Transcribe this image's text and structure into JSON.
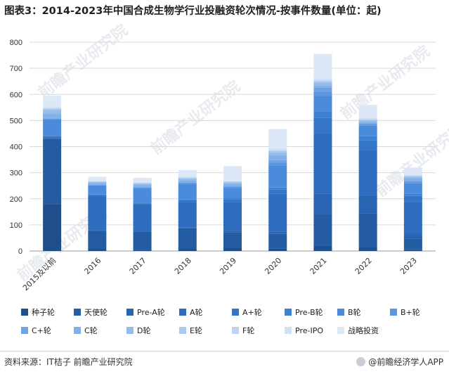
{
  "title": "图表3：2014-2023年中国合成生物学行业投融资轮次情况-按事件数量(单位：起)",
  "source": "资料来源：IT桔子 前瞻产业研究院",
  "brand": "@前瞻经济学人APP",
  "watermark": "前瞻产业研究院",
  "chart_data": {
    "type": "bar",
    "stacked": true,
    "title": "图表3：2014-2023年中国合成生物学行业投融资轮次情况-按事件数量(单位：起)",
    "xlabel": "",
    "ylabel": "",
    "ylim": [
      0,
      800
    ],
    "yticks": [
      0,
      100,
      200,
      300,
      400,
      500,
      600,
      700,
      800
    ],
    "grid": true,
    "legend_position": "bottom",
    "categories": [
      "2015及以前",
      "2016",
      "2017",
      "2018",
      "2019",
      "2020",
      "2021",
      "2022",
      "2023"
    ],
    "series": [
      {
        "name": "种子轮",
        "color": "#1f4e8c",
        "values": [
          180,
          8,
          5,
          8,
          12,
          10,
          20,
          15,
          6
        ]
      },
      {
        "name": "天使轮",
        "color": "#245ca3",
        "values": [
          250,
          70,
          70,
          80,
          60,
          55,
          120,
          130,
          40
        ]
      },
      {
        "name": "Pre-A轮",
        "color": "#2964b3",
        "values": [
          3,
          2,
          3,
          3,
          5,
          10,
          80,
          70,
          20
        ]
      },
      {
        "name": "A轮",
        "color": "#2d6cbf",
        "values": [
          4,
          130,
          100,
          95,
          110,
          145,
          230,
          170,
          120
        ]
      },
      {
        "name": "A+轮",
        "color": "#3474c9",
        "values": [
          4,
          4,
          5,
          8,
          10,
          15,
          60,
          40,
          25
        ]
      },
      {
        "name": "Pre-B轮",
        "color": "#3c7fd3",
        "values": [
          3,
          2,
          2,
          3,
          5,
          8,
          25,
          15,
          8
        ]
      },
      {
        "name": "B轮",
        "color": "#4a8bdc",
        "values": [
          60,
          35,
          55,
          60,
          40,
          85,
          60,
          40,
          40
        ]
      },
      {
        "name": "B+轮",
        "color": "#5b97e1",
        "values": [
          3,
          2,
          4,
          3,
          5,
          10,
          15,
          5,
          5
        ]
      },
      {
        "name": "C+轮",
        "color": "#6ea3e4",
        "values": [
          3,
          2,
          2,
          3,
          3,
          10,
          15,
          5,
          5
        ]
      },
      {
        "name": "C轮",
        "color": "#82b0e7",
        "values": [
          15,
          5,
          7,
          8,
          7,
          20,
          10,
          5,
          10
        ]
      },
      {
        "name": "D轮",
        "color": "#96bdea",
        "values": [
          15,
          4,
          5,
          7,
          5,
          10,
          10,
          5,
          6
        ]
      },
      {
        "name": "E轮",
        "color": "#a9c9ed",
        "values": [
          5,
          2,
          2,
          2,
          3,
          5,
          5,
          3,
          2
        ]
      },
      {
        "name": "F轮",
        "color": "#bcd4f0",
        "values": [
          2,
          1,
          1,
          2,
          2,
          4,
          5,
          2,
          2
        ]
      },
      {
        "name": "Pre-IPO",
        "color": "#cfdff4",
        "values": [
          4,
          2,
          2,
          3,
          3,
          5,
          5,
          5,
          3
        ]
      },
      {
        "name": "战略投资",
        "color": "#dde8f7",
        "values": [
          44,
          15,
          17,
          25,
          55,
          75,
          95,
          50,
          28
        ]
      }
    ]
  }
}
